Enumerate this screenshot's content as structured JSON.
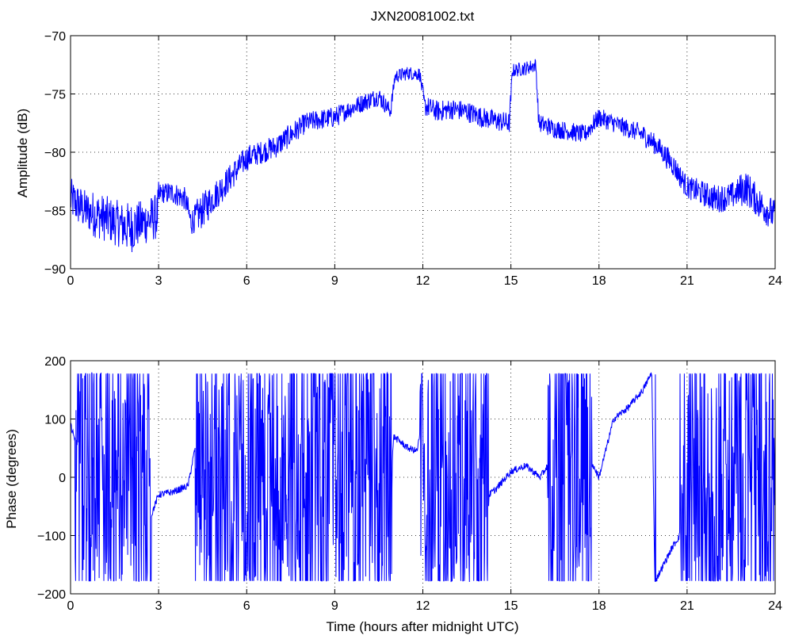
{
  "chart_data": [
    {
      "type": "line",
      "title": "JXN20081002.txt",
      "xlabel": "",
      "ylabel": "Amplitude (dB)",
      "xlim": [
        0,
        24
      ],
      "ylim": [
        -90,
        -70
      ],
      "xticks": [
        "0",
        "3",
        "6",
        "9",
        "12",
        "15",
        "18",
        "21",
        "24"
      ],
      "yticks": [
        "-90",
        "-85",
        "-80",
        "-75",
        "-70"
      ],
      "grid": true,
      "color": "#0000ff",
      "series": [
        {
          "x": [
            0,
            0.5,
            1,
            1.5,
            2,
            2.5,
            2.95,
            3.05,
            3.5,
            3.9,
            4.1,
            4.5,
            5,
            5.5,
            6,
            6.5,
            7,
            7.5,
            8,
            8.5,
            9,
            9.5,
            10,
            10.5,
            10.9,
            11.05,
            11.5,
            11.9,
            12.05,
            12.5,
            13,
            13.5,
            14,
            14.5,
            14.95,
            15.05,
            15.5,
            15.85,
            15.95,
            16.5,
            17,
            17.5,
            18,
            18.5,
            19,
            19.5,
            20,
            20.5,
            21,
            21.5,
            22,
            22.5,
            23,
            23.5,
            24
          ],
          "values": [
            -84,
            -85,
            -85.5,
            -86,
            -86.5,
            -86,
            -85.5,
            -83.5,
            -83.5,
            -84,
            -86,
            -85,
            -83.5,
            -82,
            -80.5,
            -80,
            -79.5,
            -78.5,
            -77.5,
            -77.2,
            -77,
            -76.3,
            -75.7,
            -75.2,
            -76.5,
            -73.5,
            -73.2,
            -73.3,
            -76,
            -76.5,
            -76.3,
            -76.5,
            -77,
            -77.3,
            -77.5,
            -73,
            -72.8,
            -72.5,
            -77.5,
            -78,
            -78.2,
            -78.5,
            -77,
            -77.5,
            -78,
            -78.5,
            -79.5,
            -81,
            -83,
            -83.5,
            -84,
            -83.8,
            -83,
            -84.5,
            -85.5
          ],
          "noise": [
            1.8,
            1.8,
            2,
            2,
            2.2,
            2,
            2,
            0.9,
            1,
            1,
            1.2,
            1.5,
            1.3,
            1.2,
            1.1,
            1,
            1,
            1,
            0.9,
            0.9,
            0.9,
            0.8,
            0.8,
            0.8,
            0.7,
            0.6,
            0.6,
            0.6,
            0.9,
            0.9,
            0.9,
            0.9,
            0.9,
            0.9,
            0.9,
            0.6,
            0.6,
            0.6,
            0.8,
            0.8,
            0.8,
            0.8,
            0.8,
            0.8,
            0.8,
            0.9,
            0.9,
            1,
            1,
            1.1,
            1.2,
            1.2,
            1.5,
            1.4,
            1.4
          ]
        }
      ]
    },
    {
      "type": "line",
      "title": "",
      "xlabel": "Time (hours after midnight UTC)",
      "ylabel": "Phase (degrees)",
      "xlim": [
        0,
        24
      ],
      "ylim": [
        -200,
        200
      ],
      "xticks": [
        "0",
        "3",
        "6",
        "9",
        "12",
        "15",
        "18",
        "21",
        "24"
      ],
      "yticks": [
        "-200",
        "-100",
        "0",
        "100",
        "200"
      ],
      "grid": true,
      "color": "#0000ff",
      "series": [
        {
          "x": [
            0,
            0.3,
            0.6,
            1,
            1.5,
            2,
            2.5,
            3,
            3.5,
            4,
            4.5,
            5,
            5.5,
            6,
            6.5,
            7,
            7.5,
            8,
            9,
            10,
            10.9,
            11,
            11.5,
            11.8,
            12,
            12.5,
            13,
            13.5,
            14,
            14.5,
            15,
            15.5,
            16,
            16.5,
            17,
            17.5,
            18,
            18.5,
            19,
            19.5,
            19.8,
            19.9,
            20.5,
            21,
            21.5,
            22,
            23,
            24
          ],
          "values": [
            90,
            40,
            -20,
            50,
            -60,
            80,
            -100,
            -30,
            -25,
            -15,
            120,
            40,
            20,
            -60,
            90,
            60,
            -70,
            -120,
            -60,
            -80,
            -40,
            70,
            50,
            45,
            100,
            -30,
            -20,
            30,
            -40,
            -20,
            10,
            20,
            0,
            40,
            -50,
            50,
            0,
            100,
            120,
            150,
            180,
            -180,
            -120,
            -80,
            -60,
            30,
            -70,
            10
          ],
          "wrap": [
            0,
            1,
            1,
            1,
            1,
            1,
            1,
            0,
            0,
            0,
            1,
            1,
            1,
            1,
            1,
            1,
            1,
            1,
            1,
            1,
            1,
            0,
            0,
            0,
            1,
            1,
            1,
            1,
            1,
            0,
            0,
            0,
            0,
            1,
            1,
            1,
            0,
            0,
            0,
            0,
            0,
            0,
            0,
            1,
            1,
            1,
            1,
            1
          ]
        }
      ]
    }
  ]
}
